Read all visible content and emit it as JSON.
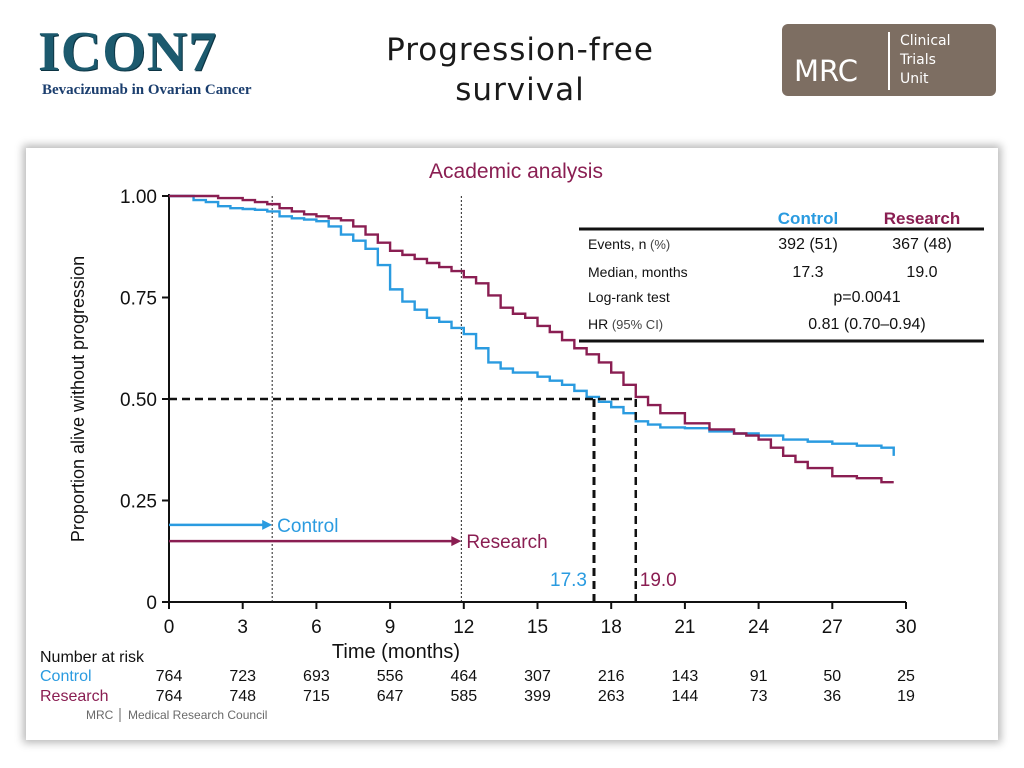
{
  "header": {
    "logo_text": "ICON7",
    "logo_subtitle": "Bevacizumab in Ovarian Cancer",
    "title_line1": "Progression-free",
    "title_line2": "survival",
    "mrc_badge": {
      "abbr": "MRC",
      "line1": "Clinical",
      "line2": "Trials",
      "line3": "Unit"
    }
  },
  "colors": {
    "control": "#2a9be0",
    "research": "#8a1e52",
    "text": "#111111"
  },
  "chart_data": {
    "type": "line",
    "title": "Academic analysis",
    "xlabel": "Time (months)",
    "ylabel": "Proportion alive without progression",
    "xlim": [
      0,
      30
    ],
    "ylim": [
      0,
      1
    ],
    "x_ticks": [
      "0",
      "3",
      "6",
      "9",
      "12",
      "15",
      "18",
      "21",
      "24",
      "27",
      "30"
    ],
    "y_ticks": [
      "0",
      "0.25",
      "0.50",
      "0.75",
      "1.00"
    ],
    "grid": false,
    "series": [
      {
        "name": "Control",
        "color": "#2a9be0",
        "x": [
          0,
          0.5,
          1,
          1.5,
          2,
          2.5,
          3,
          3.5,
          4,
          4.5,
          5,
          5.5,
          6,
          6.5,
          7,
          7.5,
          8,
          8.5,
          9,
          9.5,
          10,
          10.5,
          11,
          11.5,
          12,
          12.5,
          13,
          13.5,
          14,
          14.5,
          15,
          15.5,
          16,
          16.5,
          17,
          17.5,
          18,
          18.5,
          19,
          19.5,
          20,
          21,
          22,
          23,
          24,
          25,
          26,
          27,
          28,
          29,
          29.5
        ],
        "y": [
          1.0,
          1.0,
          0.99,
          0.985,
          0.975,
          0.97,
          0.968,
          0.966,
          0.962,
          0.95,
          0.945,
          0.942,
          0.938,
          0.925,
          0.905,
          0.89,
          0.87,
          0.83,
          0.77,
          0.74,
          0.72,
          0.7,
          0.69,
          0.675,
          0.66,
          0.625,
          0.59,
          0.575,
          0.565,
          0.565,
          0.555,
          0.545,
          0.535,
          0.52,
          0.505,
          0.493,
          0.48,
          0.465,
          0.445,
          0.437,
          0.43,
          0.428,
          0.42,
          0.415,
          0.41,
          0.4,
          0.395,
          0.39,
          0.385,
          0.38,
          0.36
        ]
      },
      {
        "name": "Research",
        "color": "#8a1e52",
        "x": [
          0,
          1,
          2,
          3,
          3.5,
          4,
          4.5,
          5,
          5.5,
          6,
          6.5,
          7,
          7.5,
          8,
          8.5,
          9,
          9.5,
          10,
          10.5,
          11,
          11.5,
          12,
          12.5,
          13,
          13.5,
          14,
          14.5,
          15,
          15.5,
          16,
          16.5,
          17,
          17.5,
          18,
          18.5,
          19,
          19.5,
          20,
          21,
          22,
          23,
          23.5,
          24,
          24.5,
          25,
          25.5,
          26,
          27,
          28,
          29,
          29.5
        ],
        "y": [
          1.0,
          1.0,
          0.995,
          0.99,
          0.985,
          0.98,
          0.97,
          0.962,
          0.955,
          0.95,
          0.945,
          0.94,
          0.925,
          0.905,
          0.885,
          0.865,
          0.855,
          0.845,
          0.835,
          0.825,
          0.815,
          0.8,
          0.785,
          0.755,
          0.725,
          0.71,
          0.7,
          0.68,
          0.665,
          0.645,
          0.625,
          0.61,
          0.59,
          0.565,
          0.535,
          0.505,
          0.485,
          0.465,
          0.44,
          0.425,
          0.415,
          0.41,
          0.4,
          0.38,
          0.36,
          0.345,
          0.33,
          0.31,
          0.305,
          0.295,
          0.295
        ]
      }
    ],
    "median_line": {
      "y": 0.5,
      "x_control": 17.3,
      "x_research": 19.0,
      "label_control": "17.3",
      "label_research": "19.0"
    },
    "reference_lines_x": [
      4.2,
      11.9
    ],
    "arrows": [
      {
        "label": "Control",
        "series": "Control",
        "y": 0.19,
        "x_start": 0,
        "x_end": 4.2
      },
      {
        "label": "Research",
        "series": "Research",
        "y": 0.15,
        "x_start": 0,
        "x_end": 11.9
      }
    ],
    "stats_table": {
      "headers": [
        "",
        "Control",
        "Research"
      ],
      "rows": [
        {
          "label": "Events, n",
          "label_suffix": " (%)",
          "control": "392 (51)",
          "research": "367 (48)"
        },
        {
          "label": "Median, months",
          "label_suffix": "",
          "control": "17.3",
          "research": "19.0"
        },
        {
          "label": "Log-rank test",
          "label_suffix": "",
          "merged": "p=0.0041"
        },
        {
          "label": "HR",
          "label_suffix": " (95% CI)",
          "merged": "0.81 (0.70–0.94)"
        }
      ]
    },
    "risk_table": {
      "title": "Number at risk",
      "rows": [
        {
          "name": "Control",
          "values": [
            "764",
            "723",
            "693",
            "556",
            "464",
            "307",
            "216",
            "143",
            "91",
            "50",
            "25"
          ]
        },
        {
          "name": "Research",
          "values": [
            "764",
            "748",
            "715",
            "647",
            "585",
            "399",
            "263",
            "144",
            "73",
            "36",
            "19"
          ]
        }
      ]
    },
    "footer": {
      "abbr": "MRC",
      "name": "Medical Research Council"
    }
  }
}
